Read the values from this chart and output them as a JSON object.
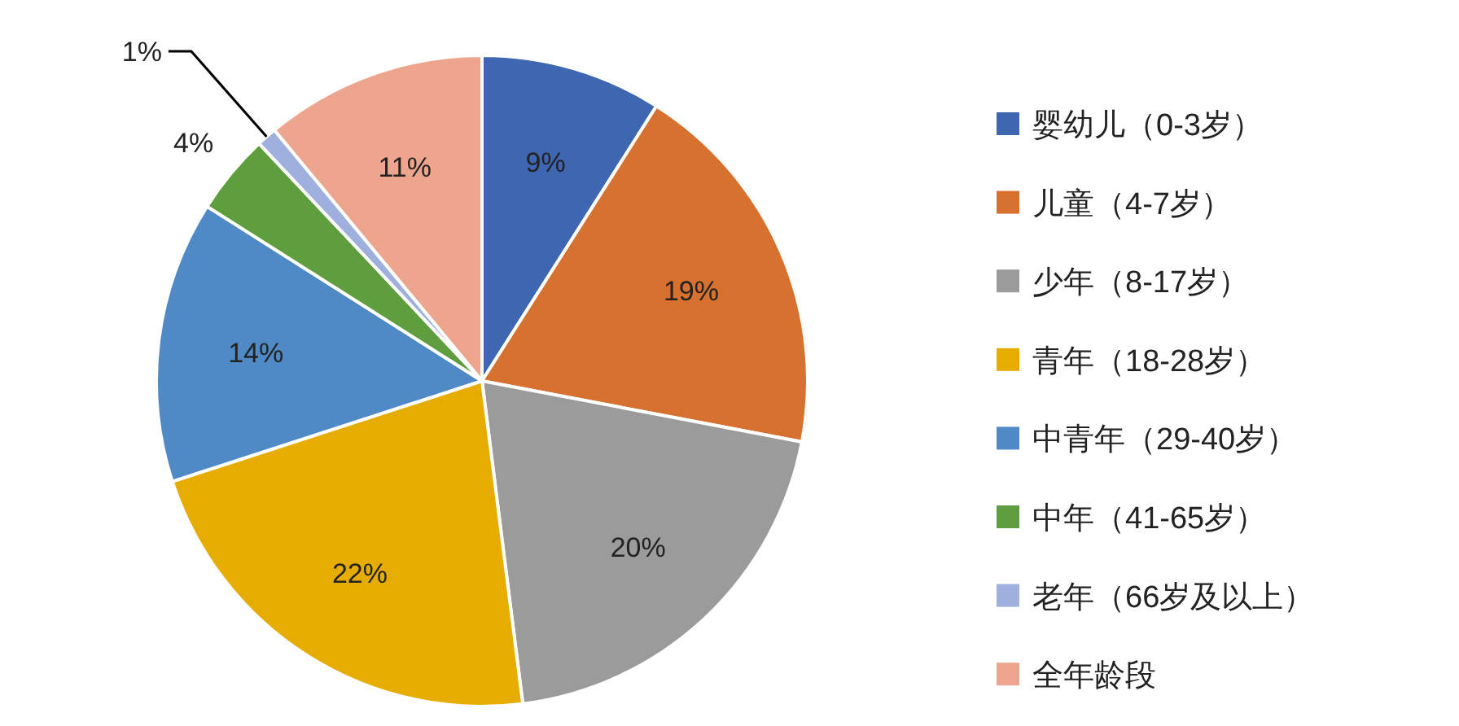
{
  "chart_data": {
    "type": "pie",
    "categories": [
      "婴幼儿（0-3岁）",
      "儿童（4-7岁）",
      "少年（8-17岁）",
      "青年（18-28岁）",
      "中青年（29-40岁）",
      "中年（41-65岁）",
      "老年（66岁及以上）",
      "全年龄段"
    ],
    "values": [
      9,
      19,
      20,
      22,
      14,
      4,
      1,
      11
    ],
    "colors": [
      "#3f67b1",
      "#d7712f",
      "#9b9b9b",
      "#e6ad00",
      "#4f8ac6",
      "#5f9e3e",
      "#9fb0de",
      "#eea58e"
    ],
    "value_labels": [
      "9%",
      "19%",
      "20%",
      "22%",
      "14%",
      "4%",
      "1%",
      "11%"
    ],
    "legend": "right"
  }
}
